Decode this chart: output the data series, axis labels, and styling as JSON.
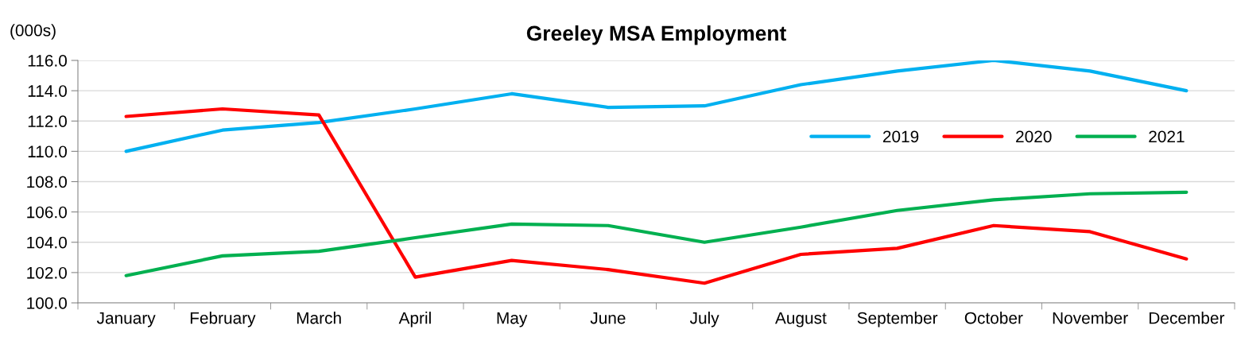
{
  "chart_data": {
    "type": "line",
    "title": "Greeley MSA Employment",
    "ylabel": "(000s)",
    "categories": [
      "January",
      "February",
      "March",
      "April",
      "May",
      "June",
      "July",
      "August",
      "September",
      "October",
      "November",
      "December"
    ],
    "series": [
      {
        "name": "2019",
        "color": "#00b0f0",
        "values": [
          110.0,
          111.4,
          111.9,
          112.8,
          113.8,
          112.9,
          113.0,
          114.4,
          115.3,
          116.0,
          115.3,
          114.0
        ]
      },
      {
        "name": "2020",
        "color": "#ff0000",
        "values": [
          112.3,
          112.8,
          112.4,
          101.7,
          102.8,
          102.2,
          101.3,
          103.2,
          103.6,
          105.1,
          104.7,
          102.9
        ]
      },
      {
        "name": "2021",
        "color": "#00b050",
        "values": [
          101.8,
          103.1,
          103.4,
          104.3,
          105.2,
          105.1,
          104.0,
          105.0,
          106.1,
          106.8,
          107.2,
          107.3
        ]
      }
    ],
    "ylim": [
      100,
      116
    ],
    "yticks": [
      {
        "value": 100,
        "label": "100.0"
      },
      {
        "value": 102,
        "label": "102.0"
      },
      {
        "value": 104,
        "label": "104.0"
      },
      {
        "value": 106,
        "label": "106.0"
      },
      {
        "value": 108,
        "label": "108.0"
      },
      {
        "value": 110,
        "label": "110.0"
      },
      {
        "value": 112,
        "label": "112.0"
      },
      {
        "value": 114,
        "label": "114.0"
      },
      {
        "value": 116,
        "label": "116.0"
      }
    ],
    "grid": "y",
    "legend": "right",
    "marker": "none",
    "line_style": "solid"
  }
}
